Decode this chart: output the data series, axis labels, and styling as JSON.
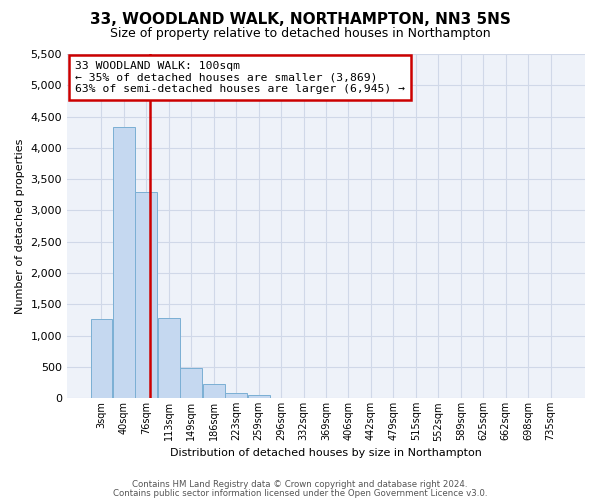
{
  "title": "33, WOODLAND WALK, NORTHAMPTON, NN3 5NS",
  "subtitle": "Size of property relative to detached houses in Northampton",
  "xlabel": "Distribution of detached houses by size in Northampton",
  "ylabel": "Number of detached properties",
  "bin_labels": [
    "3sqm",
    "40sqm",
    "76sqm",
    "113sqm",
    "149sqm",
    "186sqm",
    "223sqm",
    "259sqm",
    "296sqm",
    "332sqm",
    "369sqm",
    "406sqm",
    "442sqm",
    "479sqm",
    "515sqm",
    "552sqm",
    "589sqm",
    "625sqm",
    "662sqm",
    "698sqm",
    "735sqm"
  ],
  "bar_values": [
    1270,
    4330,
    3290,
    1290,
    480,
    230,
    80,
    50,
    0,
    0,
    0,
    0,
    0,
    0,
    0,
    0,
    0,
    0,
    0,
    0,
    0
  ],
  "bar_color": "#c5d8f0",
  "bar_edge_color": "#7bafd4",
  "grid_color": "#d0d8e8",
  "vline_color": "#cc0000",
  "ylim": [
    0,
    5500
  ],
  "yticks": [
    0,
    500,
    1000,
    1500,
    2000,
    2500,
    3000,
    3500,
    4000,
    4500,
    5000,
    5500
  ],
  "annotation_title": "33 WOODLAND WALK: 100sqm",
  "annotation_line1": "← 35% of detached houses are smaller (3,869)",
  "annotation_line2": "63% of semi-detached houses are larger (6,945) →",
  "annotation_box_color": "#ffffff",
  "annotation_box_edge_color": "#cc0000",
  "footer1": "Contains HM Land Registry data © Crown copyright and database right 2024.",
  "footer2": "Contains public sector information licensed under the Open Government Licence v3.0.",
  "bg_color": "#ffffff",
  "plot_bg_color": "#eef2f9"
}
